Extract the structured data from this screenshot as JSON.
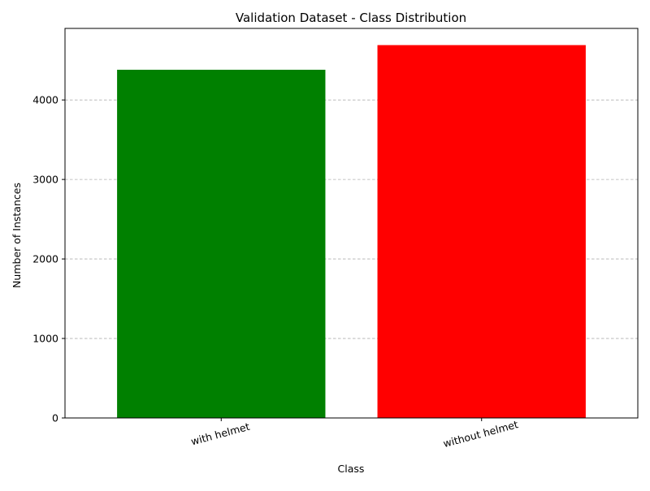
{
  "chart_data": {
    "type": "bar",
    "title": "Validation Dataset - Class Distribution",
    "xlabel": "Class",
    "ylabel": "Number of Instances",
    "categories": [
      "with helmet",
      "without helmet"
    ],
    "values": [
      4380,
      4690
    ],
    "colors": [
      "#008000",
      "#ff0000"
    ],
    "ylim": [
      0,
      4900
    ],
    "yticks": [
      0,
      1000,
      2000,
      3000,
      4000
    ],
    "grid": "y-dashed",
    "xtick_rotation": 15
  }
}
